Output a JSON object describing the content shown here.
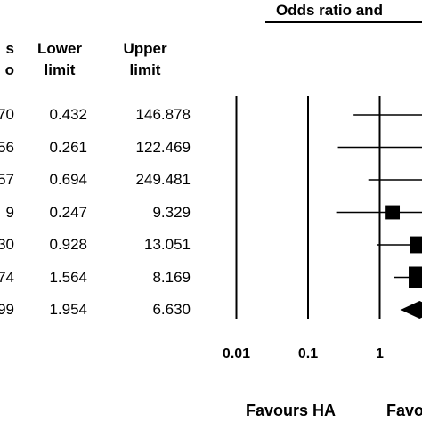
{
  "chart_data": {
    "type": "forest",
    "panel_title": "Odds ratio and",
    "columns": {
      "ratio_header": [
        "s",
        "o"
      ],
      "lower_header": [
        "Lower",
        "limit"
      ],
      "upper_header": [
        "Upper",
        "limit"
      ]
    },
    "rows": [
      {
        "ratio_text": "70",
        "lower": 0.432,
        "upper": 146.878,
        "lower_text": "0.432",
        "upper_text": "146.878",
        "marker": "square",
        "marker_weight": 0
      },
      {
        "ratio_text": "56",
        "lower": 0.261,
        "upper": 122.469,
        "lower_text": "0.261",
        "upper_text": "122.469",
        "marker": "square",
        "marker_weight": 0
      },
      {
        "ratio_text": "57",
        "lower": 0.694,
        "upper": 249.481,
        "lower_text": "0.694",
        "upper_text": "249.481",
        "marker": "square",
        "marker_weight": 0
      },
      {
        "ratio_text": "9",
        "point": 1.518,
        "lower": 0.247,
        "upper": 9.329,
        "lower_text": "0.247",
        "upper_text": "9.329",
        "marker": "square",
        "marker_weight": 0.35
      },
      {
        "ratio_text": "30",
        "point": 3.48,
        "lower": 0.928,
        "upper": 13.051,
        "lower_text": "0.928",
        "upper_text": "13.051",
        "marker": "square",
        "marker_weight": 0.55
      },
      {
        "ratio_text": "74",
        "point": 3.574,
        "lower": 1.564,
        "upper": 8.169,
        "lower_text": "1.564",
        "upper_text": "8.169",
        "marker": "square",
        "marker_weight": 1
      },
      {
        "ratio_text": "99",
        "point": 3.599,
        "lower": 1.954,
        "upper": 6.63,
        "lower_text": "1.954",
        "upper_text": "6.630",
        "marker": "diamond",
        "marker_weight": 0
      }
    ],
    "x_axis": {
      "scale": "log",
      "ticks": [
        0.01,
        0.1,
        1
      ],
      "tick_labels": [
        "0.01",
        "0.1",
        "1"
      ],
      "reference_lines": [
        0.01,
        0.1,
        1
      ]
    },
    "footer_label": "Favours HA",
    "footer_label_cut": "Favou"
  }
}
